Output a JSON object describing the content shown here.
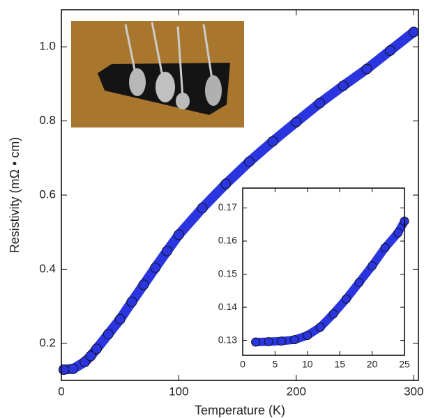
{
  "chart_data": [
    {
      "type": "scatter",
      "x_label": "Temperature (K)",
      "y_label": "Resistivity (mΩ • cm)",
      "x": [
        2,
        10,
        20,
        25,
        30,
        40,
        50,
        60,
        70,
        80,
        90,
        100,
        120,
        140,
        160,
        180,
        200,
        220,
        240,
        260,
        280,
        300
      ],
      "values": [
        0.129,
        0.131,
        0.15,
        0.166,
        0.185,
        0.225,
        0.265,
        0.312,
        0.358,
        0.404,
        0.449,
        0.493,
        0.565,
        0.63,
        0.69,
        0.745,
        0.797,
        0.848,
        0.895,
        0.94,
        0.99,
        1.04
      ],
      "color": "#2a35e0",
      "xlim": [
        0,
        304
      ],
      "ylim": [
        0.1,
        1.1
      ],
      "xticks": [
        0,
        100,
        200,
        300
      ],
      "yticks": [
        0.2,
        0.4,
        0.6,
        0.8,
        {
          "value": 1,
          "label": "1.0"
        }
      ]
    },
    {
      "type": "scatter",
      "x": [
        2,
        4,
        6,
        8,
        10,
        12,
        14,
        16,
        18,
        20,
        22,
        24,
        25
      ],
      "values": [
        0.1295,
        0.1296,
        0.1298,
        0.1302,
        0.1315,
        0.134,
        0.138,
        0.1425,
        0.1475,
        0.1525,
        0.158,
        0.1625,
        0.166
      ],
      "color": "#2a35e0",
      "xlim": [
        0,
        25
      ],
      "ylim": [
        0.1255,
        0.176
      ],
      "xticks": [
        0,
        5,
        10,
        15,
        20,
        25
      ],
      "yticks": [
        0.13,
        0.14,
        0.15,
        0.16,
        0.17
      ]
    }
  ]
}
